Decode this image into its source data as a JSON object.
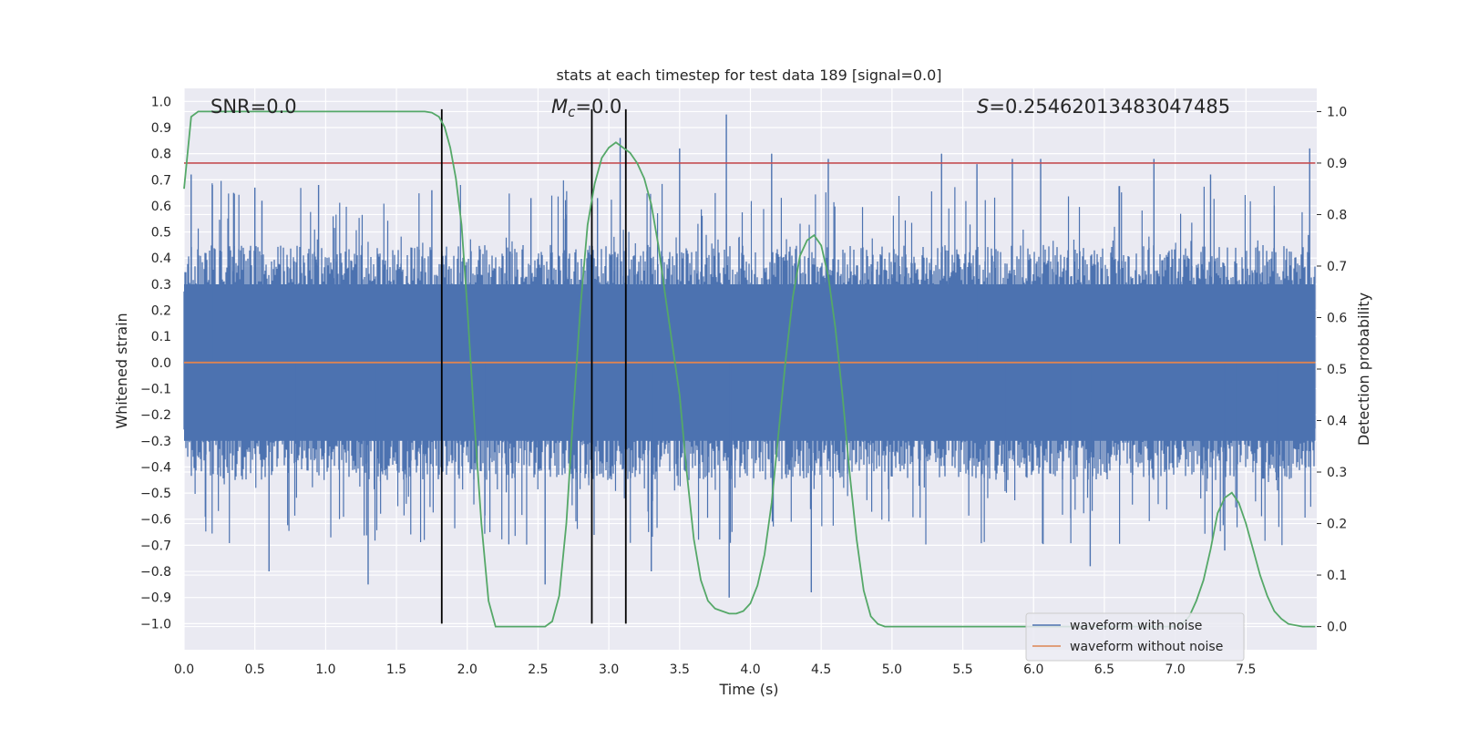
{
  "chart_data": {
    "type": "line",
    "title": "stats at each timestep for test data 189 [signal=0.0]",
    "xlabel": "Time (s)",
    "ylabel": "Whitened strain",
    "y2label": "Detection probability",
    "xlim": [
      0.0,
      8.0
    ],
    "ylim": [
      -1.1,
      1.05
    ],
    "y2lim": [
      -0.045,
      1.045
    ],
    "xticks": [
      "0.0",
      "0.5",
      "1.0",
      "1.5",
      "2.0",
      "2.5",
      "3.0",
      "3.5",
      "4.0",
      "4.5",
      "5.0",
      "5.5",
      "6.0",
      "6.5",
      "7.0",
      "7.5"
    ],
    "yticks": [
      "1.0",
      "0.9",
      "0.8",
      "0.7",
      "0.6",
      "0.5",
      "0.4",
      "0.3",
      "0.2",
      "0.1",
      "0.0",
      "−0.1",
      "−0.2",
      "−0.3",
      "−0.4",
      "−0.5",
      "−0.6",
      "−0.7",
      "−0.8",
      "−0.9",
      "−1.0"
    ],
    "y2ticks": [
      "1.0",
      "0.9",
      "0.8",
      "0.7",
      "0.6",
      "0.5",
      "0.4",
      "0.3",
      "0.2",
      "0.1",
      "0.0"
    ],
    "annotations": {
      "snr": "SNR=0.0",
      "mc_symbol": "M",
      "mc_sub": "c",
      "mc_value": "=0.0",
      "s_symbol": "S",
      "s_value": "=0.25462013483047485"
    },
    "legend": {
      "placement": "lower-right",
      "entries": [
        {
          "label": "waveform with noise",
          "color": "#4c72b0"
        },
        {
          "label": "waveform without noise",
          "color": "#dd8452"
        }
      ]
    },
    "noisy_waveform": {
      "name": "waveform with noise",
      "color": "#4c72b0",
      "x_range": [
        0.0,
        7.99
      ],
      "typical_upper": 0.45,
      "typical_lower": -0.45,
      "spikes": [
        [
          0.05,
          0.72
        ],
        [
          0.2,
          0.68
        ],
        [
          0.35,
          0.65
        ],
        [
          0.5,
          0.67
        ],
        [
          0.55,
          0.62
        ],
        [
          0.6,
          -0.8
        ],
        [
          0.95,
          0.68
        ],
        [
          1.3,
          -0.85
        ],
        [
          1.75,
          0.66
        ],
        [
          2.45,
          0.63
        ],
        [
          2.55,
          -0.85
        ],
        [
          2.92,
          0.63
        ],
        [
          3.08,
          0.86
        ],
        [
          3.3,
          -0.8
        ],
        [
          3.5,
          0.82
        ],
        [
          3.83,
          0.95
        ],
        [
          3.85,
          -0.9
        ],
        [
          4.15,
          0.8
        ],
        [
          4.43,
          -0.88
        ],
        [
          4.55,
          0.78
        ],
        [
          5.35,
          0.8
        ],
        [
          5.6,
          0.76
        ],
        [
          5.85,
          0.78
        ],
        [
          6.05,
          0.78
        ],
        [
          6.4,
          -0.78
        ],
        [
          6.85,
          0.78
        ],
        [
          7.25,
          0.72
        ],
        [
          7.35,
          -0.72
        ],
        [
          7.95,
          0.82
        ]
      ]
    },
    "clean_waveform": {
      "name": "waveform without noise",
      "color": "#dd8452",
      "value": 0.0
    },
    "threshold": {
      "value": 0.9,
      "axis": "right",
      "color": "#c44e52"
    },
    "vertical_markers": [
      1.82,
      2.88,
      3.12
    ],
    "vertical_marker_range": [
      -1.0,
      0.97
    ],
    "probability": {
      "color": "#55a868",
      "axis": "right",
      "x": [
        0.0,
        0.05,
        0.1,
        0.3,
        0.6,
        0.9,
        1.2,
        1.5,
        1.6,
        1.7,
        1.75,
        1.8,
        1.84,
        1.88,
        1.92,
        1.96,
        2.0,
        2.05,
        2.1,
        2.15,
        2.2,
        2.3,
        2.4,
        2.5,
        2.55,
        2.6,
        2.65,
        2.7,
        2.75,
        2.8,
        2.85,
        2.9,
        2.95,
        3.0,
        3.05,
        3.1,
        3.15,
        3.2,
        3.25,
        3.3,
        3.35,
        3.4,
        3.5,
        3.55,
        3.6,
        3.65,
        3.7,
        3.75,
        3.8,
        3.85,
        3.9,
        3.95,
        4.0,
        4.05,
        4.1,
        4.15,
        4.2,
        4.25,
        4.3,
        4.35,
        4.4,
        4.45,
        4.5,
        4.55,
        4.6,
        4.65,
        4.7,
        4.75,
        4.8,
        4.85,
        4.9,
        4.95,
        5.0,
        5.5,
        6.0,
        6.5,
        6.9,
        7.0,
        7.05,
        7.1,
        7.15,
        7.2,
        7.25,
        7.3,
        7.35,
        7.4,
        7.45,
        7.5,
        7.55,
        7.6,
        7.65,
        7.7,
        7.75,
        7.8,
        7.9,
        7.99
      ],
      "y": [
        0.85,
        0.99,
        1.0,
        1.0,
        1.0,
        1.0,
        1.0,
        1.0,
        1.0,
        1.0,
        0.998,
        0.99,
        0.97,
        0.93,
        0.87,
        0.78,
        0.62,
        0.4,
        0.2,
        0.05,
        0.0,
        0.0,
        0.0,
        0.0,
        0.0,
        0.01,
        0.06,
        0.2,
        0.42,
        0.62,
        0.78,
        0.86,
        0.91,
        0.93,
        0.94,
        0.93,
        0.92,
        0.9,
        0.87,
        0.82,
        0.74,
        0.64,
        0.45,
        0.3,
        0.17,
        0.09,
        0.05,
        0.035,
        0.03,
        0.025,
        0.025,
        0.03,
        0.045,
        0.08,
        0.14,
        0.24,
        0.38,
        0.52,
        0.64,
        0.72,
        0.75,
        0.76,
        0.74,
        0.68,
        0.58,
        0.45,
        0.3,
        0.17,
        0.07,
        0.02,
        0.005,
        0.0,
        0.0,
        0.0,
        0.0,
        0.0,
        0.0,
        0.0,
        0.005,
        0.02,
        0.05,
        0.09,
        0.15,
        0.22,
        0.25,
        0.26,
        0.24,
        0.2,
        0.15,
        0.1,
        0.06,
        0.03,
        0.015,
        0.005,
        0.0,
        0.0
      ]
    }
  }
}
